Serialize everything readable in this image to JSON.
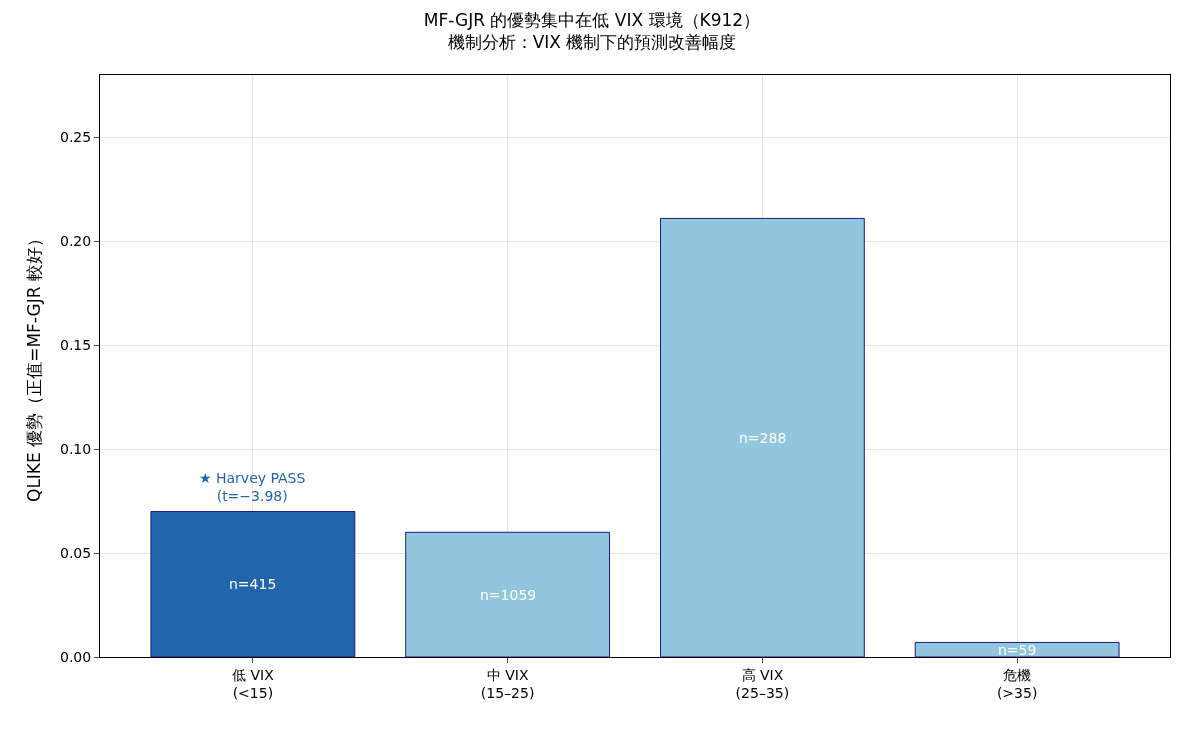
{
  "chart_data": {
    "type": "bar",
    "title": "MF-GJR 的優勢集中在低 VIX 環境（K912）",
    "subtitle": "機制分析：VIX 機制下的預測改善幅度",
    "ylabel": "QLIKE 優勢（正值=MF-GJR 較好）",
    "categories": [
      "低 VIX\n(<15)",
      "中 VIX\n(15–25)",
      "高 VIX\n(25–35)",
      "危機\n(>35)"
    ],
    "values": [
      0.07,
      0.06,
      0.211,
      0.007
    ],
    "colors": [
      "#2166ac",
      "#92c5de",
      "#92c5de",
      "#92c5de"
    ],
    "ylim": [
      0,
      0.28
    ],
    "yticks": [
      {
        "value": 0,
        "label": "0.00"
      },
      {
        "value": 0.05,
        "label": "0.05"
      },
      {
        "value": 0.1,
        "label": "0.10"
      },
      {
        "value": 0.15,
        "label": "0.15"
      },
      {
        "value": 0.2,
        "label": "0.20"
      },
      {
        "value": 0.25,
        "label": "0.25"
      }
    ],
    "grid": true,
    "annotations": [
      "n=415",
      "n=1059",
      "n=288",
      "n=59",
      "★ Harvey PASS\n(t=−3.98)"
    ]
  }
}
